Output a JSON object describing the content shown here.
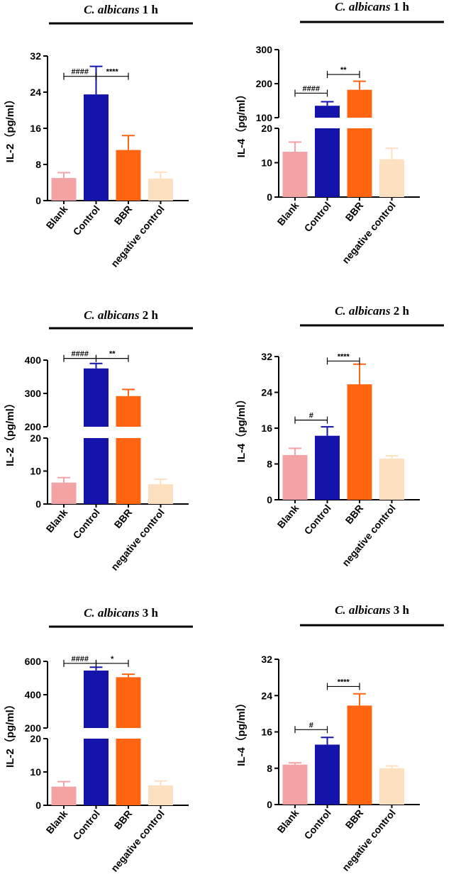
{
  "chart_data": [
    {
      "type": "bar",
      "title_italic": "C. albicans",
      "title_rest": "1 h",
      "ylabel": "IL-2（pg/ml）",
      "categories": [
        "Blank",
        "Control",
        "BBR",
        "negative control"
      ],
      "colors": [
        "#f4a3a5",
        "#1414aa",
        "#ff6411",
        "#fde0c0"
      ],
      "values": [
        5.0,
        23.5,
        11.2,
        4.9
      ],
      "errors": [
        1.2,
        6.2,
        3.2,
        1.4
      ],
      "ylim": [
        0,
        32
      ],
      "yticks": [
        0,
        8,
        16,
        24,
        32
      ],
      "break": null,
      "annotations": [
        {
          "from": 0,
          "to": 1,
          "label": "####",
          "y": 27.5
        },
        {
          "from": 1,
          "to": 2,
          "label": "****",
          "y": 27.5
        }
      ]
    },
    {
      "type": "bar",
      "title_italic": "C. albicans",
      "title_rest": "1 h",
      "ylabel": "IL-4（pg/ml）",
      "categories": [
        "Blank",
        "Control",
        "BBR",
        "negative control"
      ],
      "colors": [
        "#f4a3a5",
        "#1414aa",
        "#ff6411",
        "#fde0c0"
      ],
      "values": [
        13.2,
        135,
        182,
        11.0
      ],
      "errors": [
        2.8,
        12,
        25,
        3.2
      ],
      "ylim": [
        0,
        300
      ],
      "yticks": [
        0,
        10,
        20,
        100,
        200,
        300
      ],
      "break": {
        "low": 20,
        "high": 100
      },
      "annotations": [
        {
          "from": 0,
          "to": 1,
          "label": "####",
          "y": 172
        },
        {
          "from": 1,
          "to": 2,
          "label": "**",
          "y": 227
        }
      ]
    },
    {
      "type": "bar",
      "title_italic": "C. albicans",
      "title_rest": "2 h",
      "ylabel": "IL-2（pg/ml）",
      "categories": [
        "Blank",
        "Control",
        "BBR",
        "negative control"
      ],
      "colors": [
        "#f4a3a5",
        "#1414aa",
        "#ff6411",
        "#fde0c0"
      ],
      "values": [
        6.5,
        375,
        292,
        6.0
      ],
      "errors": [
        1.5,
        15,
        20,
        1.5
      ],
      "ylim": [
        0,
        400
      ],
      "yticks": [
        0,
        10,
        20,
        200,
        300,
        400
      ],
      "break": {
        "low": 20,
        "high": 200
      },
      "annotations": [
        {
          "from": 0,
          "to": 1,
          "label": "####",
          "y": 405
        },
        {
          "from": 1,
          "to": 2,
          "label": "**",
          "y": 405
        }
      ]
    },
    {
      "type": "bar",
      "title_italic": "C. albicans",
      "title_rest": "2 h",
      "ylabel": "IL-4（pg/ml）",
      "categories": [
        "Blank",
        "Control",
        "BBR",
        "negative control"
      ],
      "colors": [
        "#f4a3a5",
        "#1414aa",
        "#ff6411",
        "#fde0c0"
      ],
      "values": [
        10.0,
        14.3,
        25.8,
        9.2
      ],
      "errors": [
        1.5,
        2.0,
        4.5,
        0.6
      ],
      "ylim": [
        0,
        32
      ],
      "yticks": [
        0,
        8,
        16,
        24,
        32
      ],
      "break": null,
      "annotations": [
        {
          "from": 0,
          "to": 1,
          "label": "#",
          "y": 17.8
        },
        {
          "from": 1,
          "to": 2,
          "label": "****",
          "y": 31.0
        }
      ]
    },
    {
      "type": "bar",
      "title_italic": "C. albicans",
      "title_rest": "3 h",
      "ylabel": "IL-2（pg/ml）",
      "categories": [
        "Blank",
        "Control",
        "BBR",
        "negative control"
      ],
      "colors": [
        "#f4a3a5",
        "#1414aa",
        "#ff6411",
        "#fde0c0"
      ],
      "values": [
        5.6,
        545,
        505,
        6.0
      ],
      "errors": [
        1.5,
        20,
        18,
        1.3
      ],
      "ylim": [
        0,
        600
      ],
      "yticks": [
        0,
        10,
        20,
        200,
        400,
        600
      ],
      "break": {
        "low": 20,
        "high": 200
      },
      "annotations": [
        {
          "from": 0,
          "to": 1,
          "label": "####",
          "y": 588
        },
        {
          "from": 1,
          "to": 2,
          "label": "*",
          "y": 588
        }
      ]
    },
    {
      "type": "bar",
      "title_italic": "C. albicans",
      "title_rest": "3 h",
      "ylabel": "IL-4（pg/ml）",
      "categories": [
        "Blank",
        "Control",
        "BBR",
        "negative control"
      ],
      "colors": [
        "#f4a3a5",
        "#1414aa",
        "#ff6411",
        "#fde0c0"
      ],
      "values": [
        8.8,
        13.2,
        21.8,
        8.0
      ],
      "errors": [
        0.4,
        1.6,
        2.6,
        0.5
      ],
      "ylim": [
        0,
        32
      ],
      "yticks": [
        0,
        8,
        16,
        24,
        32
      ],
      "break": null,
      "annotations": [
        {
          "from": 0,
          "to": 1,
          "label": "#",
          "y": 16.5
        },
        {
          "from": 1,
          "to": 2,
          "label": "****",
          "y": 26.0
        }
      ]
    }
  ]
}
